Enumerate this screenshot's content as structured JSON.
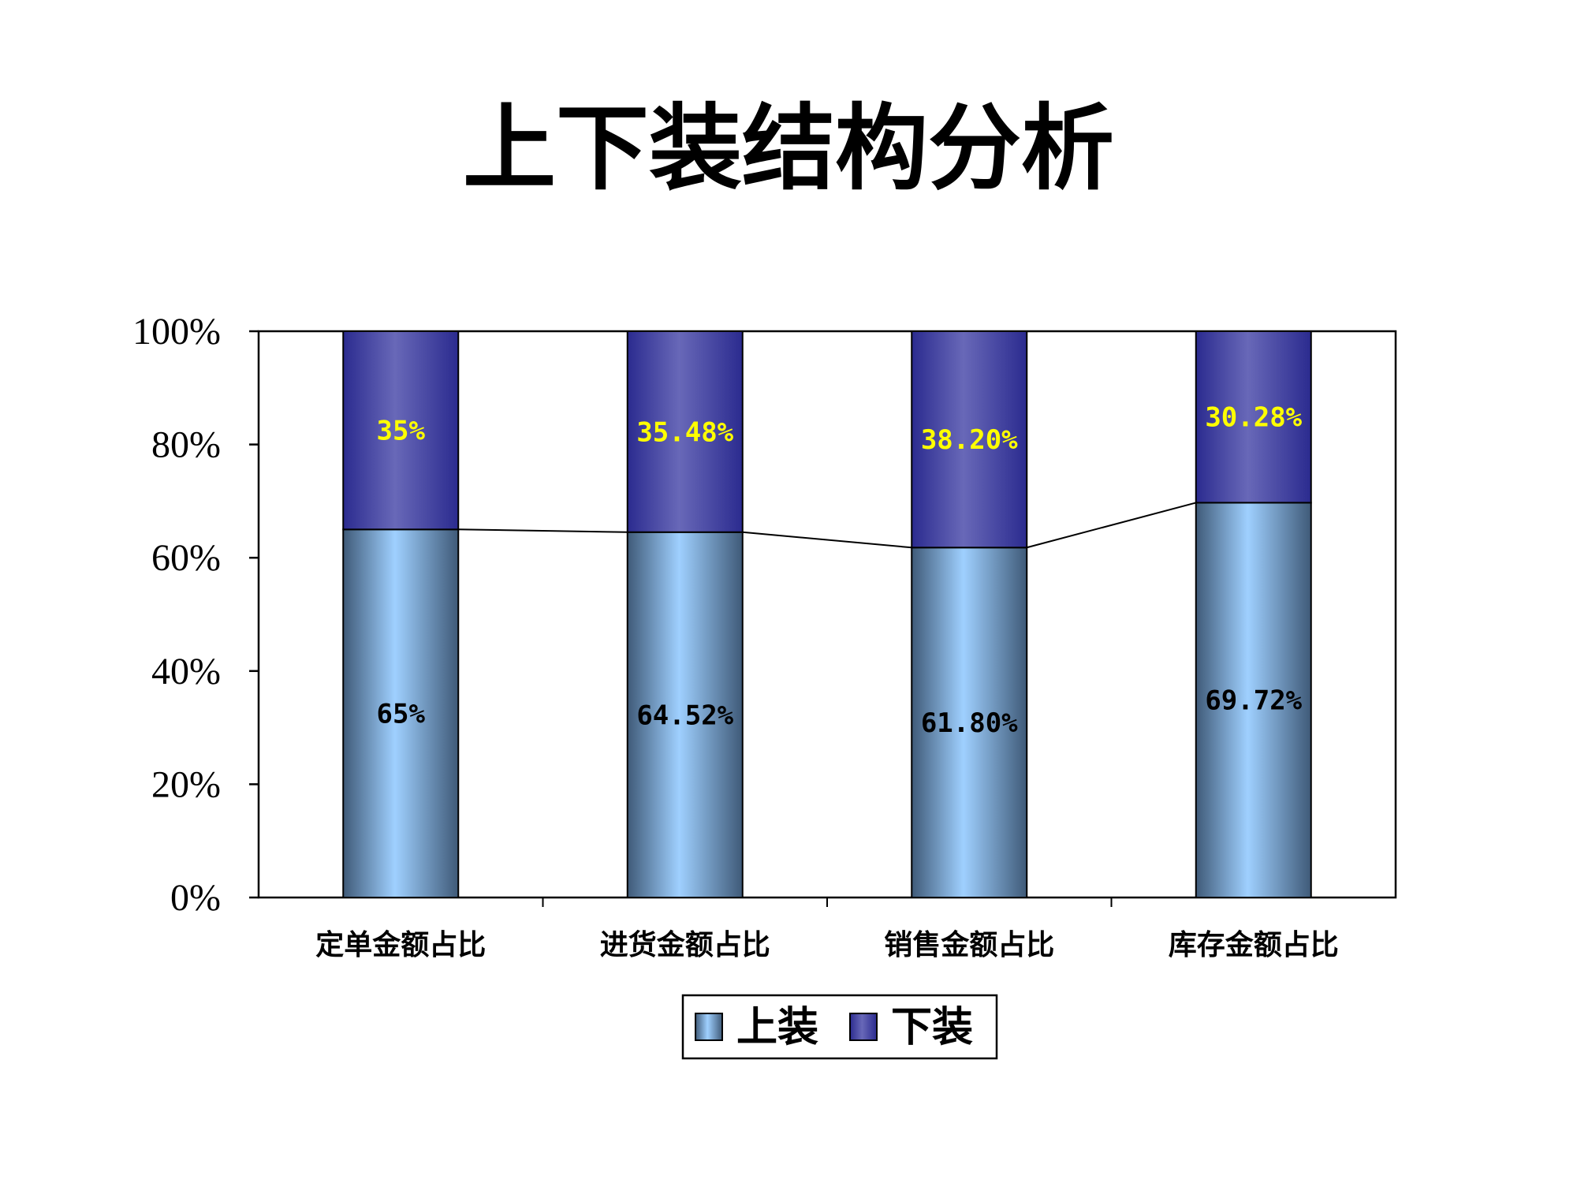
{
  "colors": {
    "upper_light": "#9fd0ff",
    "upper_dark": "#3f5a78",
    "lower_light": "#6868b8",
    "lower_dark": "#2b2b8f",
    "upper_label": "#000000",
    "lower_label": "#ffff00"
  },
  "chart_data": {
    "type": "bar",
    "stacked": true,
    "percent_stacked": true,
    "title": "上下装结构分析",
    "categories": [
      "定单金额占比",
      "进货金额占比",
      "销售金额占比",
      "库存金额占比"
    ],
    "series": [
      {
        "name": "上装",
        "values": [
          65,
          64.52,
          61.8,
          69.72
        ],
        "labels": [
          "65%",
          "64.52%",
          "61.80%",
          "69.72%"
        ]
      },
      {
        "name": "下装",
        "values": [
          35,
          35.48,
          38.2,
          30.28
        ],
        "labels": [
          "35%",
          "35.48%",
          "38.20%",
          "30.28%"
        ]
      }
    ],
    "ylim": [
      0,
      100
    ],
    "yticks": [
      "0%",
      "20%",
      "40%",
      "60%",
      "80%",
      "100%"
    ],
    "series_lines": true,
    "grid": false,
    "legend_position": "bottom"
  }
}
